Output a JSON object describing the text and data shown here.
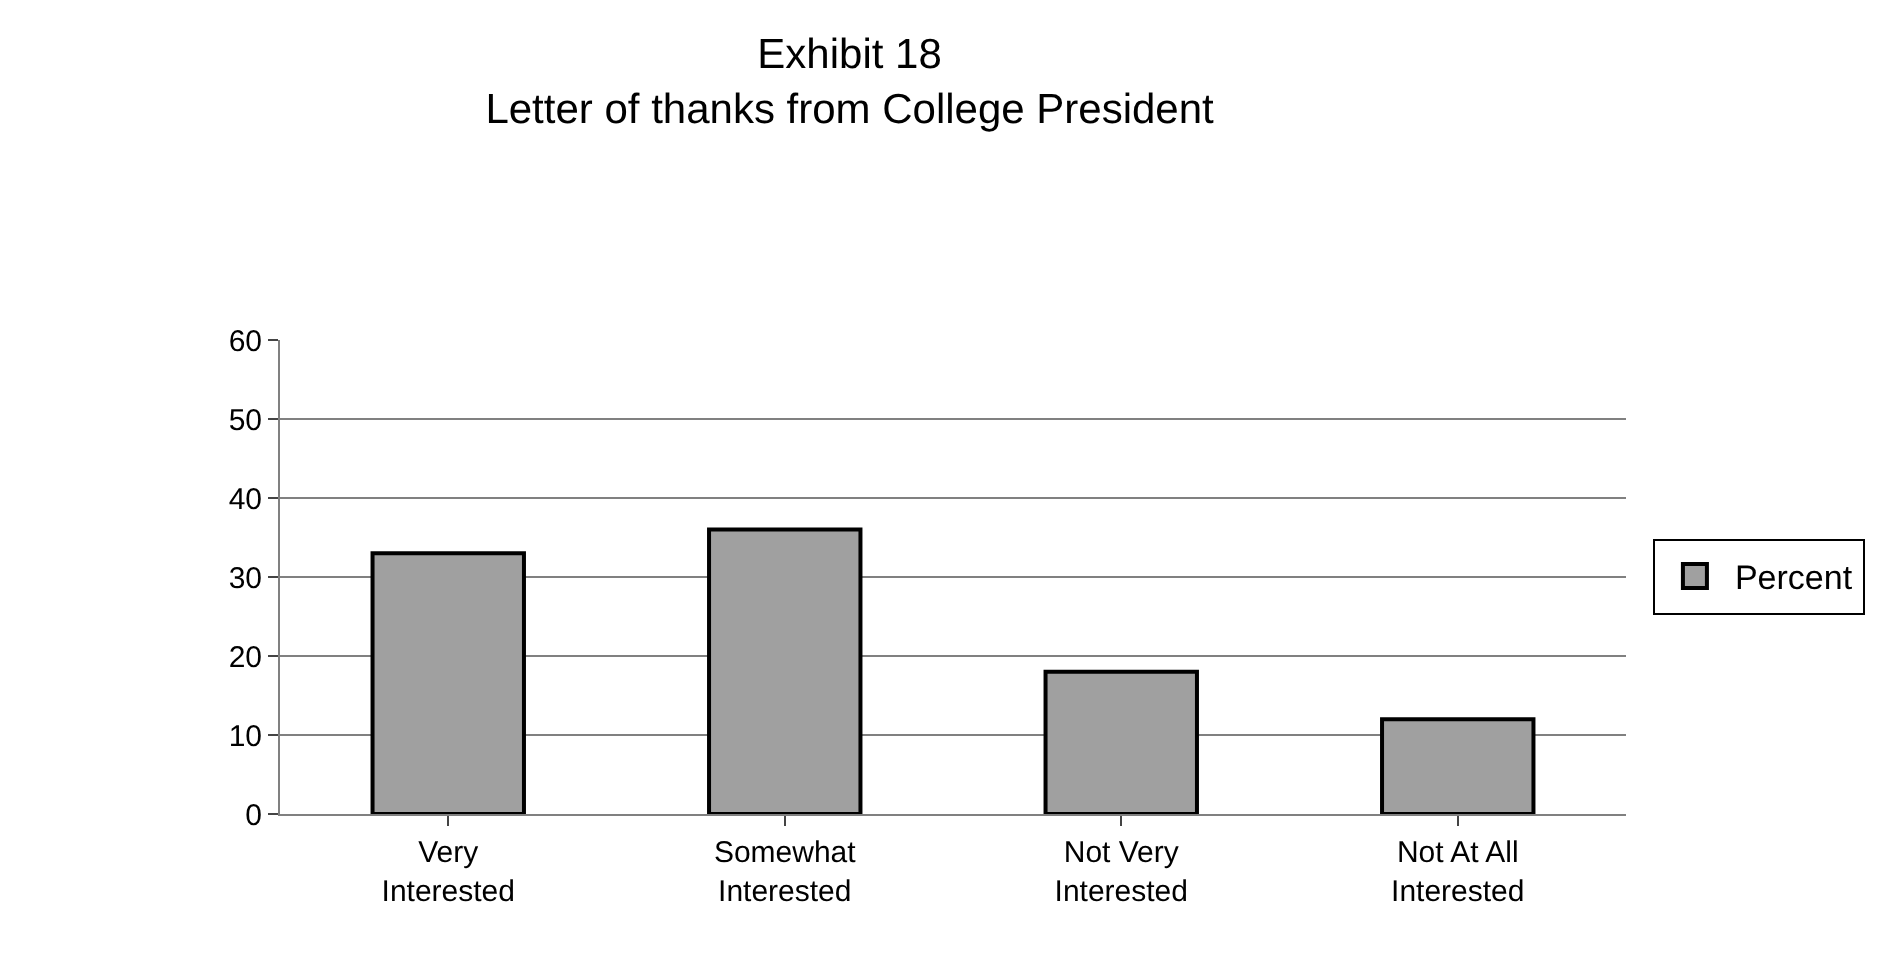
{
  "chart_data": {
    "type": "bar",
    "title": "Exhibit 18\nLetter of thanks from College President",
    "categories": [
      "Very\nInterested",
      "Somewhat\nInterested",
      "Not Very\nInterested",
      "Not At All\nInterested"
    ],
    "series": [
      {
        "name": "Percent",
        "color": "#a0a0a0",
        "values": [
          33,
          36,
          18,
          12
        ]
      }
    ],
    "ylim": [
      0,
      60
    ],
    "yticks": [
      0,
      10,
      20,
      30,
      40,
      50,
      60
    ],
    "grid": "y",
    "legend": "right"
  }
}
